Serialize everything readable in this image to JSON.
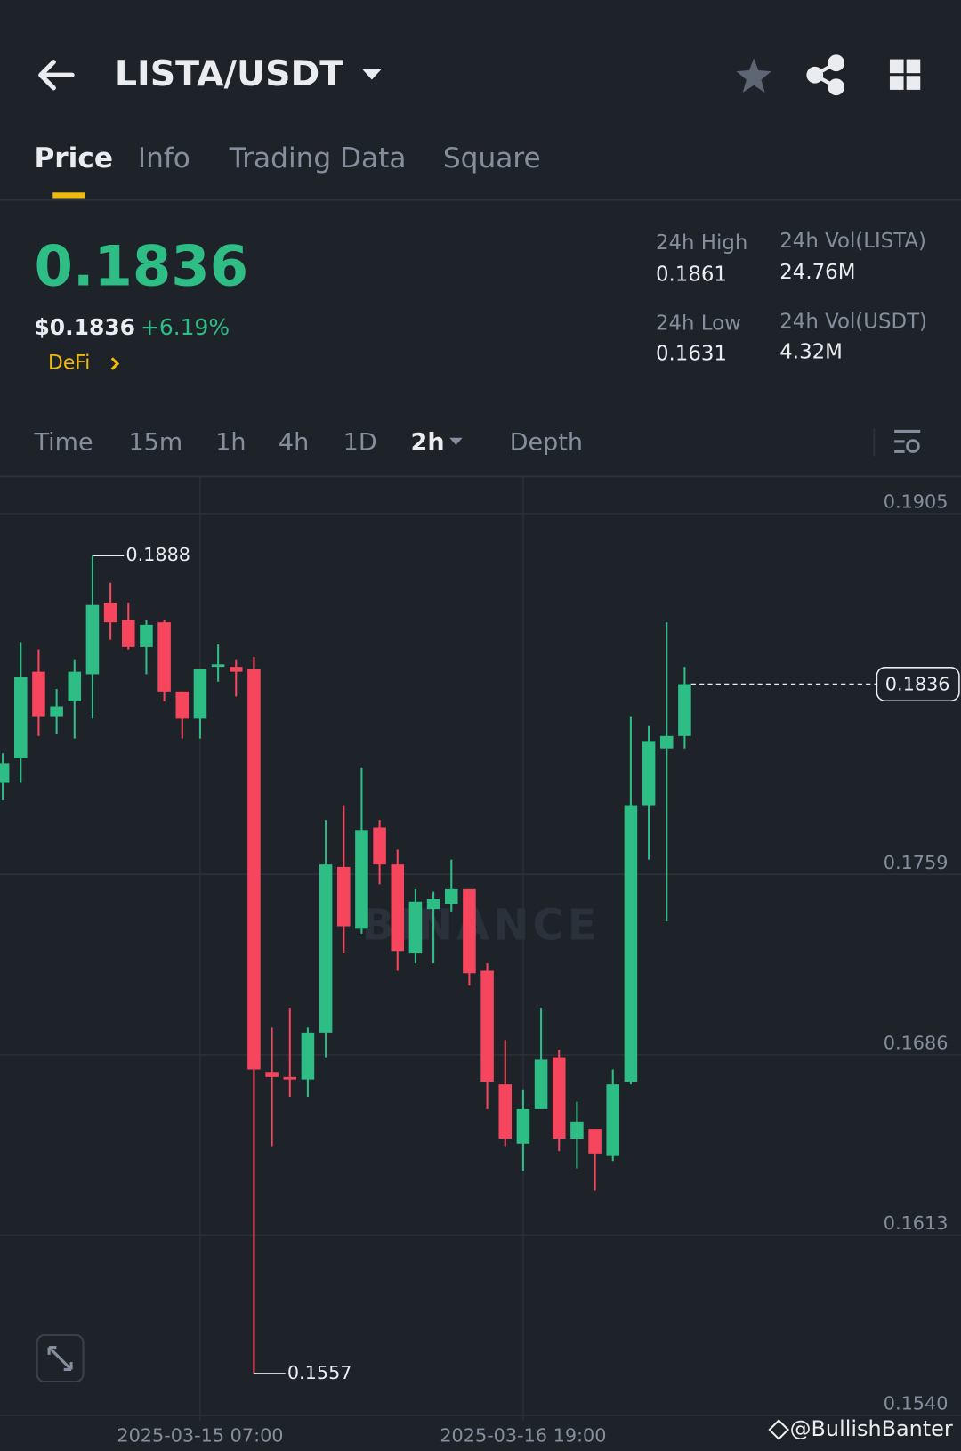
{
  "header": {
    "title": "LISTA/USDT"
  },
  "tabs": [
    "Price",
    "Info",
    "Trading Data",
    "Square"
  ],
  "ticker": {
    "price": "0.1836",
    "usd_price": "$0.1836",
    "change": "+6.19%",
    "tag": "DeFi"
  },
  "stats": [
    {
      "label": "24h High",
      "value": "0.1861"
    },
    {
      "label": "24h Vol(LISTA)",
      "value": "24.76M"
    },
    {
      "label": "24h Low",
      "value": "0.1631"
    },
    {
      "label": "24h Vol(USDT)",
      "value": "4.32M"
    }
  ],
  "intervals": [
    "Time",
    "15m",
    "1h",
    "4h",
    "1D",
    "2h",
    "Depth"
  ],
  "footer": {
    "credit": "@BullishBanter"
  },
  "chart_data": {
    "type": "candlestick",
    "watermark": "BINANCE",
    "categories": [
      null,
      null,
      null,
      null,
      null,
      null,
      null,
      null,
      null,
      null,
      null,
      "2025-03-15 07:00",
      null,
      null,
      null,
      null,
      null,
      null,
      null,
      null,
      null,
      null,
      null,
      null,
      null,
      null,
      null,
      null,
      null,
      "2025-03-16 19:00",
      null,
      null,
      null,
      null,
      null,
      null,
      null,
      null,
      null
    ],
    "open": [
      0.1796,
      0.1806,
      0.1841,
      0.1823,
      0.1829,
      0.184,
      0.1869,
      0.1862,
      0.1851,
      0.1861,
      0.1833,
      0.1822,
      0.1843,
      0.1843,
      0.1842,
      0.1679,
      0.1677,
      0.1676,
      0.1695,
      0.1762,
      0.1737,
      0.1778,
      0.1763,
      0.1727,
      0.1745,
      0.1747,
      0.1753,
      0.172,
      0.1674,
      0.165,
      0.1664,
      0.1685,
      0.1652,
      0.1656,
      0.1645,
      0.1675,
      0.1787,
      0.181,
      0.1815
    ],
    "high": [
      0.1808,
      0.1853,
      0.185,
      0.1834,
      0.1846,
      0.1888,
      0.1877,
      0.1869,
      0.1862,
      0.1862,
      0.1833,
      0.1842,
      0.1852,
      0.1846,
      0.1847,
      0.1697,
      0.1705,
      0.1697,
      0.1781,
      0.1787,
      0.1802,
      0.1781,
      0.1769,
      0.1753,
      0.1752,
      0.1765,
      0.1753,
      0.1723,
      0.1692,
      0.1672,
      0.1705,
      0.1688,
      0.1667,
      0.1656,
      0.168,
      0.1823,
      0.1819,
      0.1861,
      0.1843
    ],
    "low": [
      0.1789,
      0.1796,
      0.1815,
      0.1816,
      0.1814,
      0.1822,
      0.1854,
      0.185,
      0.184,
      0.1829,
      0.1814,
      0.1814,
      0.1837,
      0.1831,
      0.1557,
      0.1649,
      0.1669,
      0.1669,
      0.1685,
      0.1727,
      0.1735,
      0.1755,
      0.172,
      0.1723,
      0.1723,
      0.1744,
      0.1714,
      0.1664,
      0.1649,
      0.1639,
      0.1664,
      0.1647,
      0.164,
      0.1631,
      0.1643,
      0.1674,
      0.1765,
      0.174,
      0.181
    ],
    "close": [
      0.1804,
      0.1839,
      0.1823,
      0.1827,
      0.1841,
      0.1868,
      0.1861,
      0.1851,
      0.186,
      0.1833,
      0.1822,
      0.1842,
      0.1844,
      0.1841,
      0.168,
      0.1677,
      0.1676,
      0.1695,
      0.1763,
      0.1738,
      0.1777,
      0.1763,
      0.1728,
      0.1748,
      0.1749,
      0.1753,
      0.1719,
      0.1675,
      0.1652,
      0.1664,
      0.1684,
      0.1652,
      0.1659,
      0.1646,
      0.1674,
      0.1787,
      0.1813,
      0.1815,
      0.1836
    ],
    "up_color": "#2ebd85",
    "down_color": "#f6465d",
    "ylim": [
      0.1538,
      0.192
    ],
    "yticks": [
      0.1905,
      0.1759,
      0.1686,
      0.1613,
      {
        "value": 0.154,
        "label": "0.1540"
      }
    ],
    "grid": true
  }
}
